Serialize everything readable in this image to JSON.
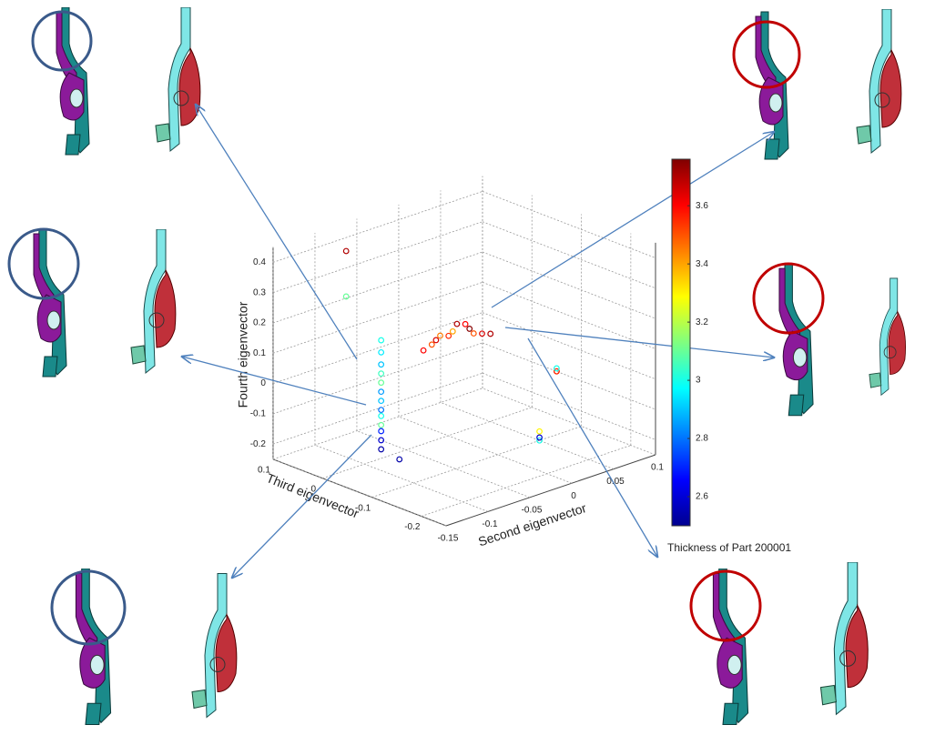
{
  "chart_data": {
    "type": "scatter3d",
    "x_label": "Second eigenvector",
    "y_label": "Third eigenvector",
    "z_label": "Fourth eigenvector",
    "xlim": [
      -0.15,
      0.1
    ],
    "xticks": [
      -0.15,
      -0.1,
      -0.05,
      0,
      0.05,
      0.1
    ],
    "ylim": [
      -0.25,
      0.1
    ],
    "yticks": [
      -0.2,
      -0.1,
      0,
      0.1
    ],
    "zlim": [
      -0.25,
      0.45
    ],
    "zticks": [
      -0.2,
      -0.1,
      0,
      0.1,
      0.2,
      0.3,
      0.4
    ],
    "grid": true,
    "x": [
      -0.08,
      -0.08,
      -0.08,
      -0.08,
      -0.08,
      -0.08,
      -0.08,
      -0.08,
      -0.08,
      -0.08,
      -0.08,
      -0.08,
      -0.08,
      -0.11,
      -0.11,
      -0.07,
      0.0,
      0.01,
      0.015,
      0.02,
      0.03,
      0.035,
      0.04,
      0.05,
      0.055,
      0.06,
      0.07,
      0.08,
      0.1,
      0.1,
      0.1,
      0.05,
      0.05,
      0.05
    ],
    "y": [
      0,
      0,
      0,
      0,
      0,
      0,
      0,
      0,
      0,
      0,
      0,
      0,
      0,
      0.02,
      0.02,
      -0.02,
      0.05,
      0.05,
      0.05,
      0.05,
      0.05,
      0.05,
      0.05,
      0.05,
      0.05,
      0.05,
      0.05,
      0.05,
      -0.05,
      -0.05,
      -0.05,
      -0.1,
      -0.1,
      -0.1
    ],
    "z": [
      0.14,
      0.1,
      0.06,
      0.03,
      0,
      -0.03,
      -0.06,
      -0.09,
      -0.11,
      -0.14,
      -0.16,
      -0.19,
      -0.22,
      0.45,
      0.3,
      -0.25,
      0,
      0.01,
      0.02,
      0.03,
      0.02,
      0.03,
      0.05,
      0.04,
      0.02,
      0,
      -0.01,
      -0.02,
      -0.1,
      -0.1,
      -0.09,
      -0.25,
      -0.22,
      -0.24
    ],
    "color_values": [
      3.0,
      2.95,
      2.9,
      3.05,
      3.1,
      2.85,
      2.9,
      2.8,
      3.0,
      3.1,
      2.7,
      2.6,
      2.55,
      3.7,
      3.1,
      2.55,
      3.6,
      3.5,
      3.65,
      3.45,
      3.55,
      3.4,
      3.7,
      3.6,
      3.75,
      3.5,
      3.65,
      3.7,
      3.6,
      3.55,
      3.0,
      3.0,
      3.3,
      2.6
    ],
    "colorbar": {
      "label": "Thickness of Part 200001",
      "colormap": "jet",
      "lim": [
        2.5,
        3.76
      ],
      "ticks": [
        2.6,
        2.8,
        3,
        3.2,
        3.4,
        3.6
      ]
    }
  }
}
